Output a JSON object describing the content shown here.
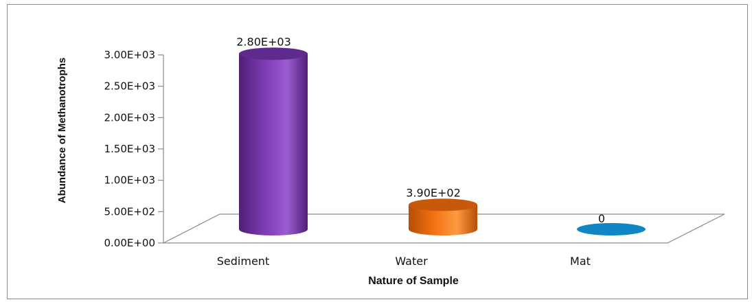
{
  "chart_data": {
    "type": "bar",
    "categories": [
      "Sediment",
      "Water",
      "Mat"
    ],
    "values": [
      2800,
      390,
      0
    ],
    "data_labels": [
      "2.80E+03",
      "3.90E+02",
      "0"
    ],
    "xlabel": "Nature of Sample",
    "ylabel": "Abundance of Methanotrophs",
    "ylim": [
      0,
      3000
    ],
    "yticks": [
      0,
      500,
      1000,
      1500,
      2000,
      2500,
      3000
    ],
    "ytick_labels": [
      "0.00E+00",
      "5.00E+02",
      "1.00E+03",
      "1.50E+03",
      "2.00E+03",
      "2.50E+03",
      "3.00E+03"
    ],
    "style": "3d-cylinder",
    "grid": false,
    "legend": "none",
    "colors": {
      "Sediment": {
        "side": "#7a3ab0",
        "dark": "#4f1f78",
        "light": "#9a5cd0",
        "top": "#5e2a8e"
      },
      "Water": {
        "side": "#f07010",
        "dark": "#b84e06",
        "light": "#ff9a40",
        "top": "#c8580a"
      },
      "Mat": {
        "side": "#1186c4",
        "dark": "#0c6a9c",
        "light": "#2a9ed8",
        "top": "#1186c4"
      }
    }
  }
}
